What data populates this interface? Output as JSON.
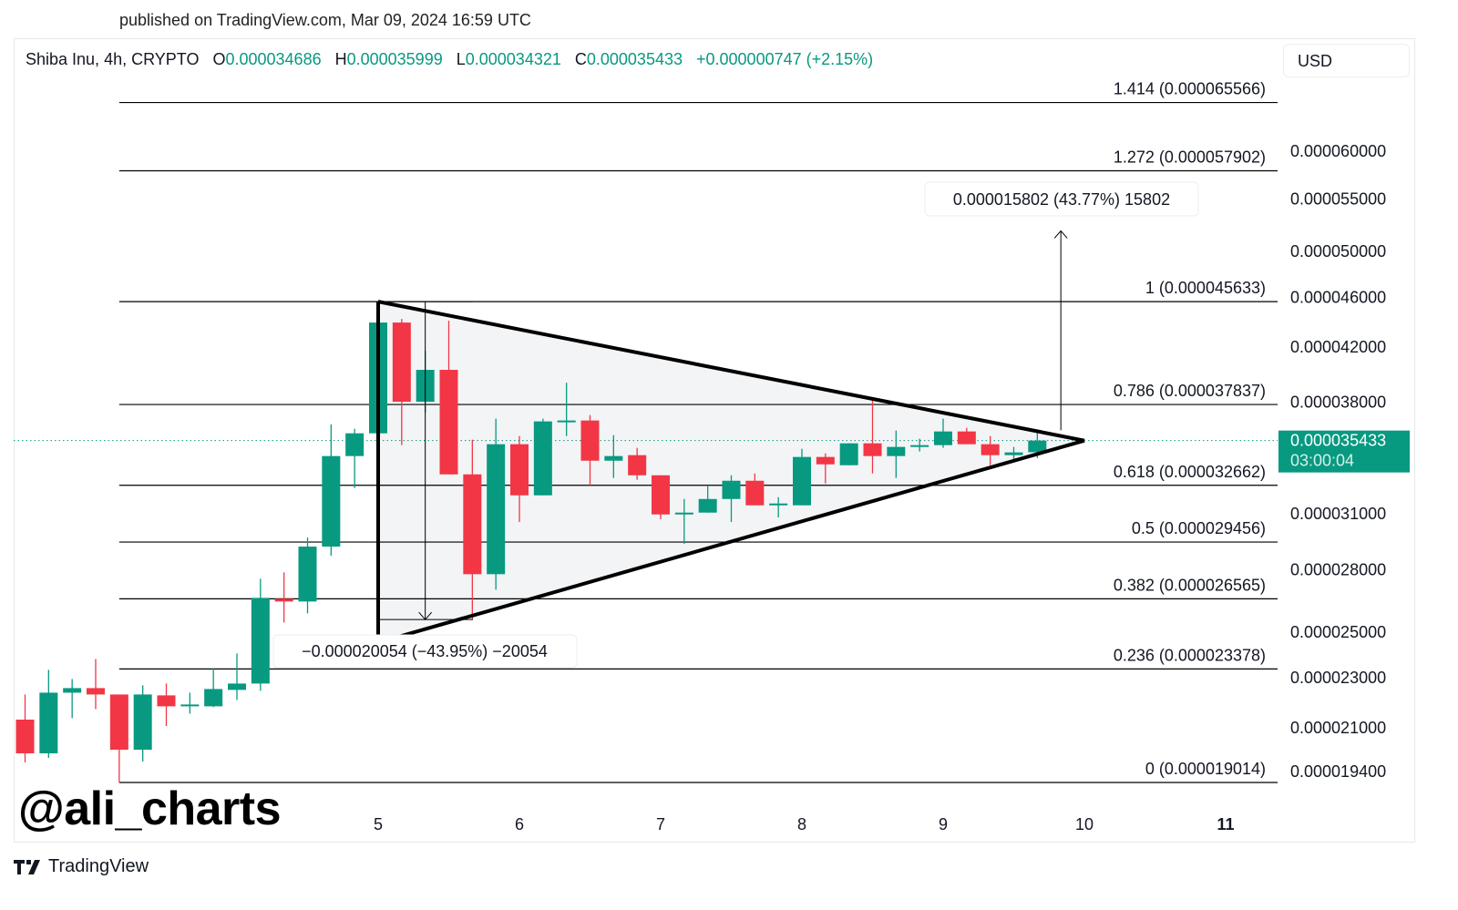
{
  "published": "published on TradingView.com, Mar 09, 2024 16:59 UTC",
  "legend": {
    "symbol": "Shiba Inu, 4h, CRYPTO",
    "o_label": "O",
    "o": "0.000034686",
    "h_label": "H",
    "h": "0.000035999",
    "l_label": "L",
    "l": "0.000034321",
    "c_label": "C",
    "c": "0.000035433",
    "change": "+0.000000747 (+2.15%)"
  },
  "currency_button": "USD",
  "watermark": "@ali_charts",
  "brand": "TradingView",
  "colors": {
    "up": "#089981",
    "down": "#f23645",
    "pattern_fill": "#f3f4f6",
    "line": "#000000"
  },
  "chart_data": {
    "type": "candlestick",
    "y_scale": "log",
    "grid": false,
    "candle_fields": [
      "time",
      "open",
      "high",
      "low",
      "close"
    ],
    "candles": [
      [
        "2024-03-02 12:00",
        2.1319e-05,
        2.2317e-05,
        1.9721e-05,
        2.005e-05
      ],
      [
        "2024-03-02 16:00",
        2.005e-05,
        2.3339e-05,
        1.9885e-05,
        2.2391e-05
      ],
      [
        "2024-03-02 20:00",
        2.2391e-05,
        2.2955e-05,
        2.1375e-05,
        2.2578e-05
      ],
      [
        "2024-03-03 00:00",
        2.2578e-05,
        2.3808e-05,
        2.1732e-05,
        2.2317e-05
      ],
      [
        "2024-03-03 04:00",
        2.2317e-05,
        2.2317e-05,
        1.9014e-05,
        2.0183e-05
      ],
      [
        "2024-03-03 08:00",
        2.0183e-05,
        2.2691e-05,
        1.9754e-05,
        2.2317e-05
      ],
      [
        "2024-03-03 12:00",
        2.2281e-05,
        2.2766e-05,
        2.1073e-05,
        2.1842e-05
      ],
      [
        "2024-03-03 16:00",
        2.188e-05,
        2.2391e-05,
        2.1554e-05,
        2.1914e-05
      ],
      [
        "2024-03-03 20:00",
        2.1842e-05,
        2.3417e-05,
        2.1807e-05,
        2.2541e-05
      ],
      [
        "2024-03-04 00:00",
        2.2504e-05,
        2.4047e-05,
        2.2097e-05,
        2.2766e-05
      ],
      [
        "2024-03-04 04:00",
        2.2766e-05,
        2.7553e-05,
        2.2466e-05,
        2.6609e-05
      ],
      [
        "2024-03-04 08:00",
        2.6565e-05,
        2.7875e-05,
        2.5444e-05,
        2.6433e-05
      ],
      [
        "2024-03-04 12:00",
        2.6433e-05,
        2.9701e-05,
        2.5869e-05,
        2.9212e-05
      ],
      [
        "2024-03-04 16:00",
        2.9212e-05,
        3.6482e-05,
        2.8731e-05,
        3.4448e-05
      ],
      [
        "2024-03-04 20:00",
        3.4448e-05,
        3.6205e-05,
        3.2499e-05,
        3.5904e-05
      ],
      [
        "2024-03-05 00:00",
        3.5904e-05,
        4.5633e-05,
        3.5904e-05,
        4.3926e-05
      ],
      [
        "2024-03-05 04:00",
        4.3926e-05,
        4.4218e-05,
        3.5139e-05,
        3.8026e-05
      ],
      [
        "2024-03-05 08:00",
        3.8026e-05,
        4.1722e-05,
        3.7277e-05,
        4.0301e-05
      ],
      [
        "2024-03-05 12:00",
        4.0301e-05,
        4.4072e-05,
        3.3318e-05,
        3.3318e-05
      ],
      [
        "2024-03-05 16:00",
        3.3318e-05,
        3.5492e-05,
        2.5579e-05,
        2.7782e-05
      ],
      [
        "2024-03-05 20:00",
        2.7782e-05,
        3.6872e-05,
        2.7009e-05,
        3.5199e-05
      ],
      [
        "2024-03-06 00:00",
        3.5199e-05,
        3.5727e-05,
        3.0552e-05,
        3.2071e-05
      ],
      [
        "2024-03-06 04:00",
        3.2071e-05,
        3.6872e-05,
        3.2071e-05,
        3.6691e-05
      ],
      [
        "2024-03-06 08:00",
        3.663e-05,
        3.9373e-05,
        3.5727e-05,
        3.6751e-05
      ],
      [
        "2024-03-06 12:00",
        3.6751e-05,
        3.7117e-05,
        3.2662e-05,
        3.4158e-05
      ],
      [
        "2024-03-06 16:00",
        3.4158e-05,
        3.5787e-05,
        3.3097e-05,
        3.4448e-05
      ],
      [
        "2024-03-06 20:00",
        3.4504e-05,
        3.4966e-05,
        3.2989e-05,
        3.3263e-05
      ],
      [
        "2024-03-07 00:00",
        3.3263e-05,
        3.3263e-05,
        3.0702e-05,
        3.0974e-05
      ],
      [
        "2024-03-07 04:00",
        3.0974e-05,
        3.1858e-05,
        2.9358e-05,
        3.1078e-05
      ],
      [
        "2024-03-07 08:00",
        3.1078e-05,
        3.2608e-05,
        3.1078e-05,
        3.1858e-05
      ],
      [
        "2024-03-07 12:00",
        3.1858e-05,
        3.3263e-05,
        3.0552e-05,
        3.2934e-05
      ],
      [
        "2024-03-07 16:00",
        3.2934e-05,
        3.3374e-05,
        3.1493e-05,
        3.1493e-05
      ],
      [
        "2024-03-07 20:00",
        3.1545e-05,
        3.1966e-05,
        3.0805e-05,
        3.1597e-05
      ],
      [
        "2024-03-08 00:00",
        3.1493e-05,
        3.4906e-05,
        3.1493e-05,
        3.4391e-05
      ],
      [
        "2024-03-08 04:00",
        3.4391e-05,
        3.4618e-05,
        3.277e-05,
        3.3933e-05
      ],
      [
        "2024-03-08 08:00",
        3.3877e-05,
        3.5256e-05,
        3.3877e-05,
        3.5256e-05
      ],
      [
        "2024-03-08 12:00",
        3.5256e-05,
        3.8151e-05,
        3.3374e-05,
        3.4448e-05
      ],
      [
        "2024-03-08 16:00",
        3.4448e-05,
        3.6085e-05,
        3.3097e-05,
        3.5025e-05
      ],
      [
        "2024-03-08 20:00",
        3.508e-05,
        3.555e-05,
        3.4735e-05,
        3.5139e-05
      ],
      [
        "2024-03-09 00:00",
        3.5139e-05,
        3.6872e-05,
        3.4966e-05,
        3.6025e-05
      ],
      [
        "2024-03-09 04:00",
        3.6025e-05,
        3.6265e-05,
        3.5199e-05,
        3.5199e-05
      ],
      [
        "2024-03-09 08:00",
        3.5199e-05,
        3.5727e-05,
        3.3877e-05,
        3.4504e-05
      ],
      [
        "2024-03-09 12:00",
        3.4504e-05,
        3.5025e-05,
        3.4158e-05,
        3.4679e-05
      ],
      [
        "2024-03-09 16:00",
        3.4686e-05,
        3.5999e-05,
        3.4321e-05,
        3.5433e-05
      ]
    ],
    "x_ticks": [
      {
        "label": "5",
        "time": "2024-03-05 00:00"
      },
      {
        "label": "6",
        "time": "2024-03-06 00:00"
      },
      {
        "label": "7",
        "time": "2024-03-07 00:00"
      },
      {
        "label": "8",
        "time": "2024-03-08 00:00"
      },
      {
        "label": "9",
        "time": "2024-03-09 00:00"
      },
      {
        "label": "10",
        "time": "2024-03-10 00:00"
      },
      {
        "label": "11",
        "time": "2024-03-11 00:00",
        "bold": true
      }
    ],
    "y_ticks": [
      {
        "label": "0.000060000",
        "value": 6e-05
      },
      {
        "label": "0.000055000",
        "value": 5.5e-05
      },
      {
        "label": "0.000050000",
        "value": 5e-05
      },
      {
        "label": "0.000046000",
        "value": 4.6e-05
      },
      {
        "label": "0.000042000",
        "value": 4.2e-05
      },
      {
        "label": "0.000038000",
        "value": 3.8e-05
      },
      {
        "label": "0.000031000",
        "value": 3.1e-05
      },
      {
        "label": "0.000028000",
        "value": 2.8e-05
      },
      {
        "label": "0.000025000",
        "value": 2.5e-05
      },
      {
        "label": "0.000023000",
        "value": 2.3e-05
      },
      {
        "label": "0.000021000",
        "value": 2.1e-05
      },
      {
        "label": "0.000019400",
        "value": 1.94e-05
      }
    ],
    "current_price": {
      "label": "0.000035433",
      "value": 3.5433e-05,
      "countdown": "03:00:04"
    },
    "fib_levels": [
      {
        "label": "1.414 (0.000065566)",
        "value": 6.5566e-05
      },
      {
        "label": "1.272 (0.000057902)",
        "value": 5.7902e-05
      },
      {
        "label": "1 (0.000045633)",
        "value": 4.5633e-05
      },
      {
        "label": "0.786 (0.000037837)",
        "value": 3.7837e-05
      },
      {
        "label": "0.618 (0.000032662)",
        "value": 3.2662e-05
      },
      {
        "label": "0.5 (0.000029456)",
        "value": 2.9456e-05
      },
      {
        "label": "0.382 (0.000026565)",
        "value": 2.6565e-05
      },
      {
        "label": "0.236 (0.000023378)",
        "value": 2.3378e-05
      },
      {
        "label": "0 (0.000019014)",
        "value": 1.9014e-05
      }
    ],
    "fib_start_time": "2024-03-03 04:00",
    "triangle": [
      {
        "time": "2024-03-05 00:00",
        "value": 4.5633e-05
      },
      {
        "time": "2024-03-10 00:00",
        "value": 3.5433e-05
      },
      {
        "time": "2024-03-05 00:00",
        "value": 2.4531e-05
      }
    ],
    "measures": [
      {
        "label": "−0.000020054 (−43.95%) −20054",
        "time": "2024-03-05 08:00",
        "from": 4.5633e-05,
        "to": 2.5579e-05
      },
      {
        "label": "0.000015802 (43.77%) 15802",
        "time": "2024-03-09 20:00",
        "from": 3.61e-05,
        "to": 5.1902e-05
      }
    ]
  }
}
